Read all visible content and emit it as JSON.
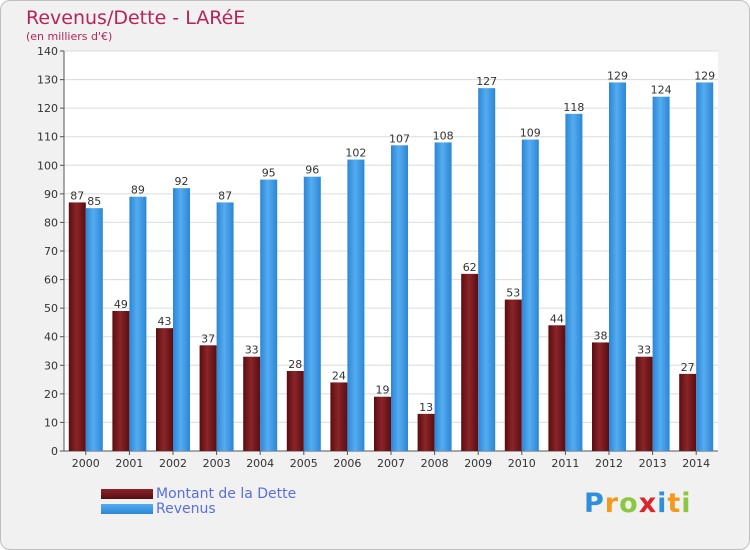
{
  "header": {
    "title": "Revenus/Dette - LARéE",
    "subtitle": "(en milliers d'€)"
  },
  "chart_data": {
    "type": "bar",
    "categories": [
      "2000",
      "2001",
      "2002",
      "2003",
      "2004",
      "2005",
      "2006",
      "2007",
      "2008",
      "2009",
      "2010",
      "2011",
      "2012",
      "2013",
      "2014"
    ],
    "series": [
      {
        "name": "Montant de la Dette",
        "color": "#7a1a1c",
        "values": [
          87,
          49,
          43,
          37,
          33,
          28,
          24,
          19,
          13,
          62,
          53,
          44,
          38,
          33,
          27
        ]
      },
      {
        "name": "Revenus",
        "color": "#3d9be6",
        "values": [
          85,
          89,
          92,
          87,
          95,
          96,
          102,
          107,
          108,
          127,
          109,
          118,
          129,
          124,
          129
        ]
      }
    ],
    "ylim": [
      0,
      140
    ],
    "ytick_step": 10,
    "grid": true,
    "legend_placement": "bottom-left"
  },
  "logo": {
    "text": "Proxiti",
    "letters": [
      {
        "ch": "P",
        "color": "#2f8fd8"
      },
      {
        "ch": "r",
        "color": "#f29a1c"
      },
      {
        "ch": "o",
        "color": "#8dc63f"
      },
      {
        "ch": "x",
        "color": "#d9262c"
      },
      {
        "ch": "i",
        "color": "#2f8fd8"
      },
      {
        "ch": "t",
        "color": "#f29a1c"
      },
      {
        "ch": "i",
        "color": "#8dc63f"
      }
    ]
  }
}
